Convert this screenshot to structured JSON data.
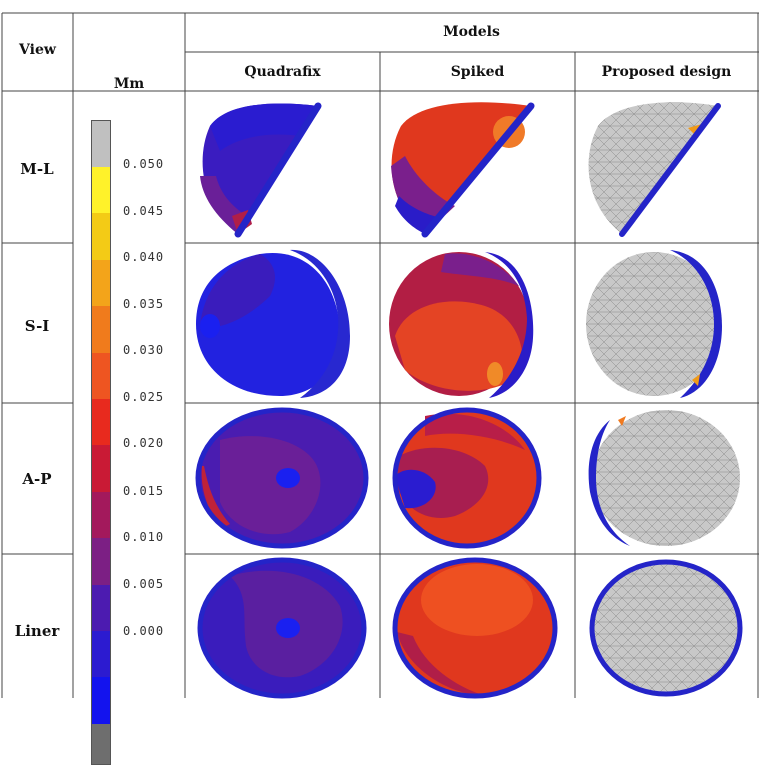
{
  "table": {
    "view_header": "View",
    "models_header": "Models",
    "unit_label": "Mm",
    "columns": [
      "Quadrafix",
      "Spiked",
      "Proposed design"
    ],
    "rows": [
      "M-L",
      "S-I",
      "A-P",
      "Liner"
    ]
  },
  "legend": {
    "ticks": [
      "0.050",
      "0.045",
      "0.040",
      "0.035",
      "0.030",
      "0.025",
      "0.020",
      "0.015",
      "0.010",
      "0.005",
      "0.000"
    ],
    "colors": [
      "#c0c0c0",
      "#fff22a",
      "#f3cb16",
      "#f3a41a",
      "#f07b1c",
      "#ee5521",
      "#e82a1e",
      "#c91a35",
      "#a3195c",
      "#7c1f84",
      "#4c1bb0",
      "#2c1bd0",
      "#1313ee",
      "#6e6e6e"
    ]
  },
  "palette": {
    "rim": "#2020c8",
    "blue": "#2a1cc8",
    "purple": "#5a1fa0",
    "red": "#e0301e",
    "orange": "#f07020",
    "gray": "#c8c8c8"
  }
}
